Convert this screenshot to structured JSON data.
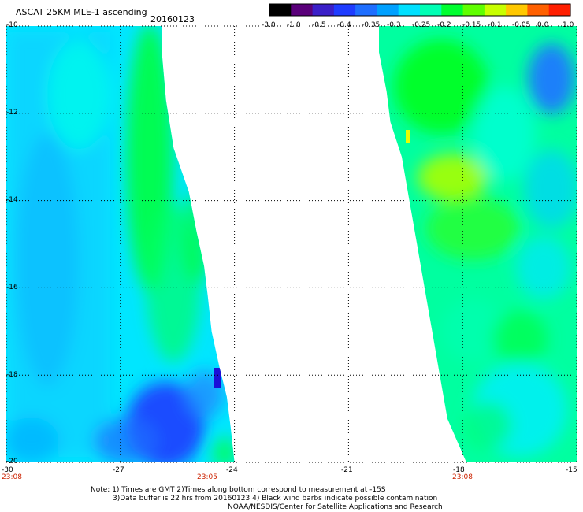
{
  "header": {
    "title": "ASCAT 25KM MLE-1 ascending",
    "date": "20160123"
  },
  "colorbar": {
    "labels": [
      "-3.0",
      "-1.0",
      "-0.5",
      "-0.4",
      "-0.35",
      "-0.3",
      "-0.25",
      "-0.2",
      "-0.15",
      "-0.1",
      "-0.05",
      "0.0",
      "1.0"
    ],
    "colors": [
      "#000000",
      "#5a007a",
      "#3a1fc8",
      "#1e3cff",
      "#1e6eff",
      "#00a0ff",
      "#00e0ff",
      "#00ffb4",
      "#00ff30",
      "#60ff00",
      "#c8ff00",
      "#ffc800",
      "#ff6000",
      "#ff1e00"
    ]
  },
  "times": {
    "t1": "23:08",
    "t2": "23:05",
    "t3": "23:08"
  },
  "notes": {
    "line1": "Note: 1) Times are GMT 2)Times along bottom correspond to measurement at -15S",
    "line2": "3)Data buffer is 22 hrs from 20160123 4) Black wind barbs indicate possible contamination",
    "line3": "NOAA/NESDIS/Center for Satellite Applications and Research"
  },
  "chart_data": {
    "type": "heatmap",
    "title": "ASCAT 25KM MLE-1 ascending",
    "x_ticks": [
      -30,
      -27,
      -24,
      -21,
      -18,
      -15
    ],
    "x_tick_labels": [
      "-30",
      "-27",
      "-24",
      "-21",
      "-18",
      "-15"
    ],
    "y_ticks": [
      -10,
      -12,
      -14,
      -16,
      -18,
      -20
    ],
    "y_tick_labels": [
      "-10",
      "-12",
      "-14",
      "-16",
      "-18",
      "-20"
    ],
    "xlim": [
      -30,
      -15
    ],
    "ylim": [
      -20,
      -10
    ],
    "grid": true,
    "colorbar_placement": "top-right",
    "swaths": [
      {
        "description_time": "23:05",
        "east_edge_lon": [
          [
            -10.0,
            -25.9
          ],
          [
            -10.7,
            -25.9
          ],
          [
            -11.7,
            -25.8
          ],
          [
            -12.8,
            -25.6
          ],
          [
            -13.8,
            -25.2
          ],
          [
            -14.7,
            -25.0
          ],
          [
            -15.5,
            -24.8
          ],
          [
            -16.2,
            -24.7
          ],
          [
            -17.0,
            -24.6
          ],
          [
            -17.8,
            -24.4
          ],
          [
            -18.5,
            -24.2
          ],
          [
            -19.2,
            -24.1
          ],
          [
            -20.0,
            -24.0
          ]
        ],
        "regions": [
          {
            "lat": [
              -10,
              -20
            ],
            "lon": [
              -30,
              -27.5
            ],
            "value": -0.27,
            "label": "cyan"
          },
          {
            "lat": [
              -10,
              -18
            ],
            "lon": [
              -27.0,
              -25.8
            ],
            "value": -0.2,
            "label": "green"
          },
          {
            "lat": [
              -18.5,
              -20
            ],
            "lon": [
              -27.5,
              -25.5
            ],
            "value": -0.35,
            "label": "blue"
          },
          {
            "lat": [
              -18,
              -18.5
            ],
            "lon": [
              -24.5,
              -24.2
            ],
            "value": -0.45,
            "label": "dark blue"
          }
        ]
      },
      {
        "description_time": "23:08",
        "west_edge_lon": [
          [
            -10.0,
            -20.2
          ],
          [
            -10.6,
            -20.2
          ],
          [
            -11.5,
            -20.0
          ],
          [
            -12.2,
            -19.9
          ],
          [
            -13.0,
            -19.6
          ],
          [
            -14.0,
            -19.4
          ],
          [
            -15.0,
            -19.2
          ],
          [
            -16.0,
            -19.0
          ],
          [
            -17.0,
            -18.8
          ],
          [
            -18.0,
            -18.6
          ],
          [
            -19.0,
            -18.4
          ],
          [
            -20.0,
            -17.9
          ]
        ],
        "regions": [
          {
            "lat": [
              -10,
              -14
            ],
            "lon": [
              -19.6,
              -16.5
            ],
            "value": -0.18,
            "label": "green"
          },
          {
            "lat": [
              -13,
              -14
            ],
            "lon": [
              -18.8,
              -17.8
            ],
            "value": -0.12,
            "label": "yellow-green"
          },
          {
            "lat": [
              -10.5,
              -12
            ],
            "lon": [
              -15.8,
              -15
            ],
            "value": -0.35,
            "label": "blue"
          },
          {
            "lat": [
              -14,
              -20
            ],
            "lon": [
              -19,
              -15
            ],
            "value": -0.24,
            "label": "cyan/green mix"
          }
        ]
      }
    ]
  }
}
